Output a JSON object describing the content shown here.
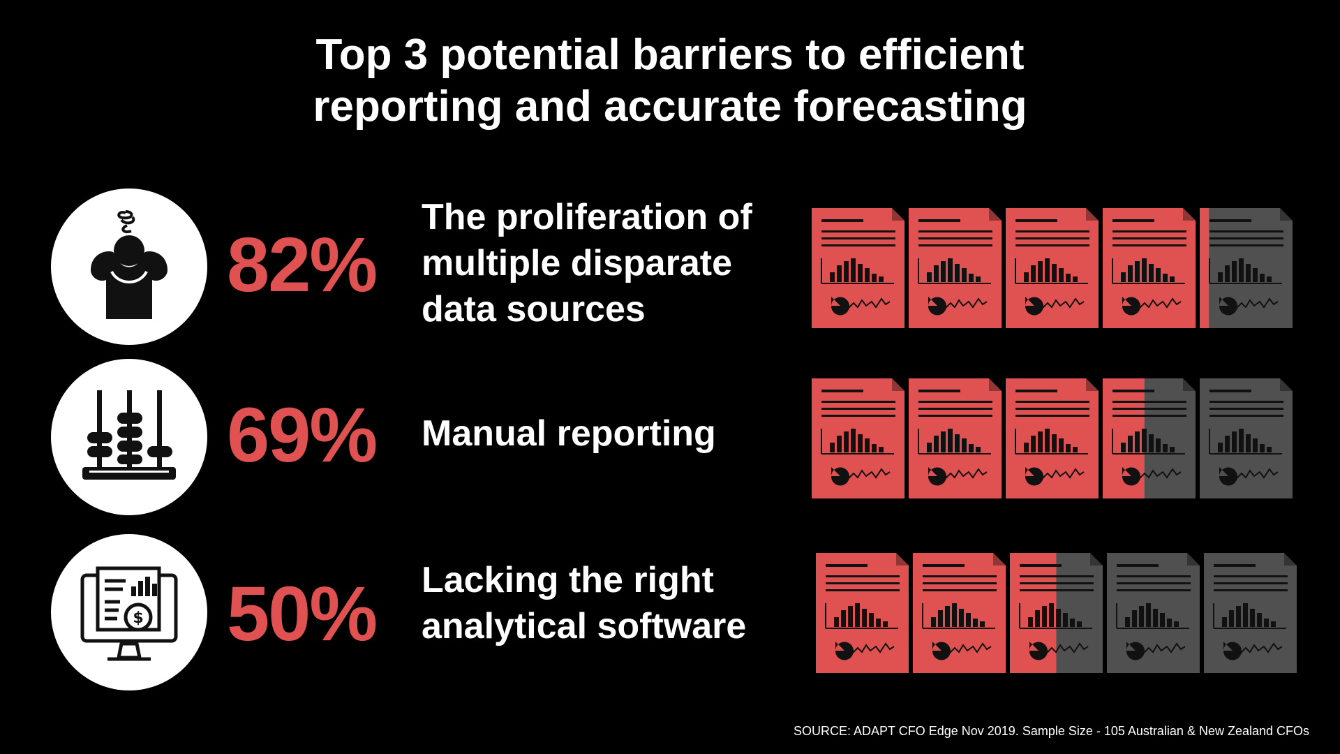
{
  "title": {
    "line1": "Top 3 potential barriers to efficient",
    "line2": "reporting and accurate forecasting"
  },
  "colors": {
    "accent": "#e05252",
    "muted": "#505050",
    "background": "#000000",
    "text": "#ffffff"
  },
  "rows": [
    {
      "percent": "82%",
      "label_lines": [
        "The proliferation of",
        "multiple disparate",
        "data sources"
      ],
      "icon": "stressed-person-icon"
    },
    {
      "percent": "69%",
      "label_lines": [
        "Manual reporting"
      ],
      "icon": "abacus-icon"
    },
    {
      "percent": "50%",
      "label_lines": [
        "Lacking the right",
        "analytical software"
      ],
      "icon": "financial-report-monitor-icon"
    }
  ],
  "chart_data": {
    "type": "bar",
    "categories": [
      "The proliferation of multiple disparate data sources",
      "Manual reporting",
      "Lacking the right analytical software"
    ],
    "values": [
      82,
      69,
      50
    ],
    "unit": "%",
    "ylim": [
      0,
      100
    ],
    "glyphs_per_row": 5,
    "encoding": "pictograph"
  },
  "source": "SOURCE: ADAPT CFO Edge Nov 2019. Sample Size - 105 Australian & New Zealand CFOs"
}
